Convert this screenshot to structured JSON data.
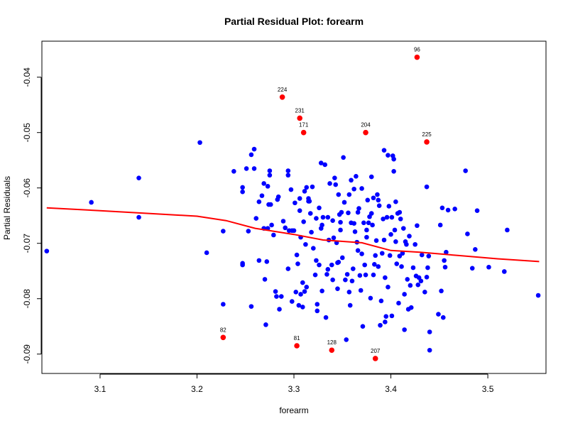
{
  "chart_data": {
    "type": "scatter",
    "title": "Partial Residual Plot: forearm",
    "xlabel": "forearm",
    "ylabel": "Partial Residuals",
    "xlim": [
      3.04,
      3.56
    ],
    "ylim": [
      -0.0935,
      -0.0335
    ],
    "xticks": [
      3.1,
      3.2,
      3.3,
      3.4,
      3.5
    ],
    "yticks": [
      -0.09,
      -0.08,
      -0.07,
      -0.06,
      -0.05,
      -0.04
    ],
    "xtick_labels": [
      "3.1",
      "3.2",
      "3.3",
      "3.4",
      "3.5"
    ],
    "ytick_labels": [
      "-0.09",
      "-0.08",
      "-0.07",
      "-0.06",
      "-0.05",
      "-0.04"
    ],
    "grid": false,
    "colors": {
      "points": "#0000ff",
      "highlight": "#ff0000",
      "smooth": "#ff0000",
      "axes": "#000000"
    },
    "points": [
      [
        3.045,
        -0.0714
      ],
      [
        3.091,
        -0.0626
      ],
      [
        3.14,
        -0.0582
      ],
      [
        3.14,
        -0.0653
      ],
      [
        3.203,
        -0.0518
      ],
      [
        3.21,
        -0.0717
      ],
      [
        3.227,
        -0.0678
      ],
      [
        3.227,
        -0.081
      ],
      [
        3.238,
        -0.057
      ],
      [
        3.247,
        -0.0599
      ],
      [
        3.247,
        -0.0607
      ],
      [
        3.247,
        -0.0736
      ],
      [
        3.247,
        -0.0739
      ],
      [
        3.251,
        -0.0565
      ],
      [
        3.253,
        -0.0678
      ],
      [
        3.256,
        -0.054
      ],
      [
        3.256,
        -0.0814
      ],
      [
        3.259,
        -0.053
      ],
      [
        3.259,
        -0.0565
      ],
      [
        3.261,
        -0.0655
      ],
      [
        3.264,
        -0.0625
      ],
      [
        3.264,
        -0.0731
      ],
      [
        3.267,
        -0.0614
      ],
      [
        3.269,
        -0.0592
      ],
      [
        3.269,
        -0.0673
      ],
      [
        3.27,
        -0.0765
      ],
      [
        3.271,
        -0.0847
      ],
      [
        3.272,
        -0.0733
      ],
      [
        3.273,
        -0.0673
      ],
      [
        3.273,
        -0.0597
      ],
      [
        3.274,
        -0.063
      ],
      [
        3.275,
        -0.0569
      ],
      [
        3.275,
        -0.0577
      ],
      [
        3.276,
        -0.063
      ],
      [
        3.277,
        -0.0667
      ],
      [
        3.279,
        -0.0685
      ],
      [
        3.281,
        -0.0787
      ],
      [
        3.282,
        -0.0796
      ],
      [
        3.283,
        -0.0621
      ],
      [
        3.284,
        -0.0616
      ],
      [
        3.285,
        -0.0819
      ],
      [
        3.287,
        -0.0796
      ],
      [
        3.289,
        -0.066
      ],
      [
        3.291,
        -0.0672
      ],
      [
        3.294,
        -0.0577
      ],
      [
        3.294,
        -0.0569
      ],
      [
        3.294,
        -0.0746
      ],
      [
        3.295,
        -0.0677
      ],
      [
        3.297,
        -0.0603
      ],
      [
        3.298,
        -0.0805
      ],
      [
        3.298,
        -0.0677
      ],
      [
        3.3,
        -0.0677
      ],
      [
        3.301,
        -0.0627
      ],
      [
        3.302,
        -0.0788
      ],
      [
        3.303,
        -0.0721
      ],
      [
        3.304,
        -0.0737
      ],
      [
        3.305,
        -0.0812
      ],
      [
        3.306,
        -0.0641
      ],
      [
        3.306,
        -0.0619
      ],
      [
        3.307,
        -0.0792
      ],
      [
        3.307,
        -0.0689
      ],
      [
        3.309,
        -0.0815
      ],
      [
        3.309,
        -0.0771
      ],
      [
        3.31,
        -0.0661
      ],
      [
        3.311,
        -0.0606
      ],
      [
        3.311,
        -0.0787
      ],
      [
        3.312,
        -0.0702
      ],
      [
        3.313,
        -0.0599
      ],
      [
        3.313,
        -0.0779
      ],
      [
        3.315,
        -0.0619
      ],
      [
        3.315,
        -0.0624
      ],
      [
        3.316,
        -0.0624
      ],
      [
        3.317,
        -0.0646
      ],
      [
        3.318,
        -0.068
      ],
      [
        3.319,
        -0.0598
      ],
      [
        3.32,
        -0.0709
      ],
      [
        3.322,
        -0.0757
      ],
      [
        3.323,
        -0.0731
      ],
      [
        3.323,
        -0.0655
      ],
      [
        3.324,
        -0.0822
      ],
      [
        3.324,
        -0.081
      ],
      [
        3.326,
        -0.0636
      ],
      [
        3.326,
        -0.0739
      ],
      [
        3.328,
        -0.0555
      ],
      [
        3.328,
        -0.0673
      ],
      [
        3.329,
        -0.0786
      ],
      [
        3.329,
        -0.0667
      ],
      [
        3.33,
        -0.0653
      ],
      [
        3.332,
        -0.0558
      ],
      [
        3.333,
        -0.0834
      ],
      [
        3.334,
        -0.0756
      ],
      [
        3.335,
        -0.0747
      ],
      [
        3.335,
        -0.0653
      ],
      [
        3.336,
        -0.0694
      ],
      [
        3.337,
        -0.0592
      ],
      [
        3.339,
        -0.0739
      ],
      [
        3.34,
        -0.0659
      ],
      [
        3.34,
        -0.0766
      ],
      [
        3.341,
        -0.069
      ],
      [
        3.342,
        -0.0582
      ],
      [
        3.343,
        -0.0594
      ],
      [
        3.344,
        -0.0699
      ],
      [
        3.345,
        -0.0782
      ],
      [
        3.345,
        -0.0735
      ],
      [
        3.346,
        -0.0612
      ],
      [
        3.346,
        -0.0734
      ],
      [
        3.347,
        -0.0648
      ],
      [
        3.348,
        -0.0676
      ],
      [
        3.348,
        -0.0662
      ],
      [
        3.349,
        -0.0644
      ],
      [
        3.35,
        -0.0726
      ],
      [
        3.351,
        -0.0545
      ],
      [
        3.352,
        -0.0626
      ],
      [
        3.353,
        -0.0766
      ],
      [
        3.354,
        -0.0874
      ],
      [
        3.355,
        -0.0756
      ],
      [
        3.356,
        -0.0645
      ],
      [
        3.357,
        -0.0788
      ],
      [
        3.357,
        -0.0612
      ],
      [
        3.358,
        -0.0812
      ],
      [
        3.359,
        -0.0663
      ],
      [
        3.359,
        -0.0586
      ],
      [
        3.36,
        -0.0768
      ],
      [
        3.361,
        -0.0746
      ],
      [
        3.362,
        -0.0602
      ],
      [
        3.362,
        -0.0664
      ],
      [
        3.363,
        -0.0679
      ],
      [
        3.364,
        -0.0579
      ],
      [
        3.365,
        -0.0698
      ],
      [
        3.366,
        -0.0644
      ],
      [
        3.366,
        -0.0713
      ],
      [
        3.367,
        -0.0637
      ],
      [
        3.368,
        -0.0758
      ],
      [
        3.369,
        -0.0785
      ],
      [
        3.37,
        -0.0719
      ],
      [
        3.37,
        -0.0601
      ],
      [
        3.371,
        -0.085
      ],
      [
        3.372,
        -0.0663
      ],
      [
        3.373,
        -0.0739
      ],
      [
        3.374,
        -0.0757
      ],
      [
        3.375,
        -0.0689
      ],
      [
        3.375,
        -0.0676
      ],
      [
        3.376,
        -0.0622
      ],
      [
        3.377,
        -0.0663
      ],
      [
        3.378,
        -0.0652
      ],
      [
        3.379,
        -0.0799
      ],
      [
        3.38,
        -0.058
      ],
      [
        3.38,
        -0.0646
      ],
      [
        3.381,
        -0.0667
      ],
      [
        3.382,
        -0.0618
      ],
      [
        3.382,
        -0.0757
      ],
      [
        3.383,
        -0.0738
      ],
      [
        3.384,
        -0.0722
      ],
      [
        3.385,
        -0.0695
      ],
      [
        3.386,
        -0.0612
      ],
      [
        3.387,
        -0.0622
      ],
      [
        3.387,
        -0.0742
      ],
      [
        3.388,
        -0.0632
      ],
      [
        3.389,
        -0.0848
      ],
      [
        3.39,
        -0.0804
      ],
      [
        3.391,
        -0.0718
      ],
      [
        3.392,
        -0.0656
      ],
      [
        3.393,
        -0.0532
      ],
      [
        3.393,
        -0.0694
      ],
      [
        3.394,
        -0.0762
      ],
      [
        3.394,
        -0.0842
      ],
      [
        3.395,
        -0.0832
      ],
      [
        3.396,
        -0.0653
      ],
      [
        3.397,
        -0.0541
      ],
      [
        3.397,
        -0.0779
      ],
      [
        3.398,
        -0.0633
      ],
      [
        3.399,
        -0.0722
      ],
      [
        3.4,
        -0.0684
      ],
      [
        3.401,
        -0.0831
      ],
      [
        3.401,
        -0.0653
      ],
      [
        3.402,
        -0.0542
      ],
      [
        3.403,
        -0.057
      ],
      [
        3.403,
        -0.0548
      ],
      [
        3.404,
        -0.0676
      ],
      [
        3.405,
        -0.0697
      ],
      [
        3.405,
        -0.0625
      ],
      [
        3.406,
        -0.0737
      ],
      [
        3.407,
        -0.0646
      ],
      [
        3.408,
        -0.0808
      ],
      [
        3.409,
        -0.0723
      ],
      [
        3.409,
        -0.0644
      ],
      [
        3.41,
        -0.0656
      ],
      [
        3.411,
        -0.0742
      ],
      [
        3.412,
        -0.0718
      ],
      [
        3.413,
        -0.0673
      ],
      [
        3.414,
        -0.0856
      ],
      [
        3.414,
        -0.0792
      ],
      [
        3.415,
        -0.0697
      ],
      [
        3.416,
        -0.0702
      ],
      [
        3.417,
        -0.0765
      ],
      [
        3.418,
        -0.0819
      ],
      [
        3.419,
        -0.0687
      ],
      [
        3.42,
        -0.0776
      ],
      [
        3.421,
        -0.0816
      ],
      [
        3.423,
        -0.0744
      ],
      [
        3.425,
        -0.0702
      ],
      [
        3.426,
        -0.0759
      ],
      [
        3.427,
        -0.0668
      ],
      [
        3.428,
        -0.0775
      ],
      [
        3.429,
        -0.0762
      ],
      [
        3.431,
        -0.0768
      ],
      [
        3.432,
        -0.0721
      ],
      [
        3.435,
        -0.0788
      ],
      [
        3.437,
        -0.0598
      ],
      [
        3.437,
        -0.0761
      ],
      [
        3.438,
        -0.0744
      ],
      [
        3.439,
        -0.0723
      ],
      [
        3.44,
        -0.0893
      ],
      [
        3.44,
        -0.086
      ],
      [
        3.449,
        -0.0828
      ],
      [
        3.451,
        -0.0667
      ],
      [
        3.452,
        -0.0786
      ],
      [
        3.453,
        -0.0636
      ],
      [
        3.454,
        -0.0834
      ],
      [
        3.455,
        -0.0731
      ],
      [
        3.456,
        -0.0743
      ],
      [
        3.457,
        -0.0716
      ],
      [
        3.459,
        -0.064
      ],
      [
        3.466,
        -0.0638
      ],
      [
        3.477,
        -0.0569
      ],
      [
        3.479,
        -0.0683
      ],
      [
        3.484,
        -0.0745
      ],
      [
        3.487,
        -0.0711
      ],
      [
        3.489,
        -0.0641
      ],
      [
        3.501,
        -0.0743
      ],
      [
        3.517,
        -0.0751
      ],
      [
        3.52,
        -0.0676
      ],
      [
        3.552,
        -0.0794
      ]
    ],
    "highlighted": [
      {
        "label": "96",
        "x": 3.427,
        "y": -0.0364
      },
      {
        "label": "224",
        "x": 3.288,
        "y": -0.0436
      },
      {
        "label": "231",
        "x": 3.306,
        "y": -0.0474
      },
      {
        "label": "171",
        "x": 3.31,
        "y": -0.05
      },
      {
        "label": "204",
        "x": 3.374,
        "y": -0.05
      },
      {
        "label": "225",
        "x": 3.437,
        "y": -0.0517
      },
      {
        "label": "82",
        "x": 3.227,
        "y": -0.087
      },
      {
        "label": "81",
        "x": 3.303,
        "y": -0.0885
      },
      {
        "label": "128",
        "x": 3.339,
        "y": -0.0893
      },
      {
        "label": "207",
        "x": 3.384,
        "y": -0.0908
      }
    ],
    "smooth_line": {
      "x": [
        3.045,
        3.1,
        3.15,
        3.2,
        3.23,
        3.26,
        3.3,
        3.33,
        3.37,
        3.4,
        3.43,
        3.47,
        3.51,
        3.553
      ],
      "y": [
        -0.0636,
        -0.0641,
        -0.0646,
        -0.0651,
        -0.0659,
        -0.0673,
        -0.0684,
        -0.0694,
        -0.0699,
        -0.0713,
        -0.0716,
        -0.0722,
        -0.0728,
        -0.0733
      ]
    }
  }
}
